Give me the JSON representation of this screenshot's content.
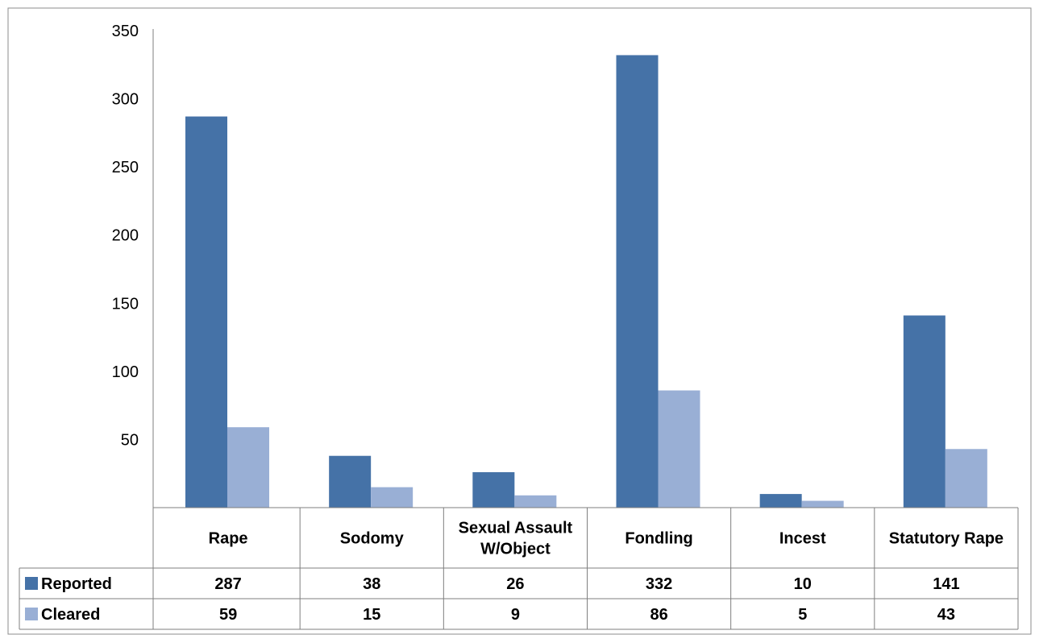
{
  "chart_data": {
    "type": "bar",
    "categories": [
      [
        "Rape"
      ],
      [
        "Sodomy"
      ],
      [
        "Sexual Assault",
        "W/Object"
      ],
      [
        "Fondling"
      ],
      [
        "Incest"
      ],
      [
        "Statutory Rape"
      ]
    ],
    "series": [
      {
        "name": "Reported",
        "color": "#4572A7",
        "values": [
          287,
          38,
          26,
          332,
          10,
          141
        ]
      },
      {
        "name": "Cleared",
        "color": "#99AFD5",
        "values": [
          59,
          15,
          9,
          86,
          5,
          43
        ]
      }
    ],
    "yticks": [
      50,
      100,
      150,
      200,
      250,
      300,
      350
    ],
    "ylim": [
      0,
      350
    ],
    "grid": false,
    "legend": "data-table-left",
    "title": "",
    "xlabel": "",
    "ylabel": ""
  }
}
